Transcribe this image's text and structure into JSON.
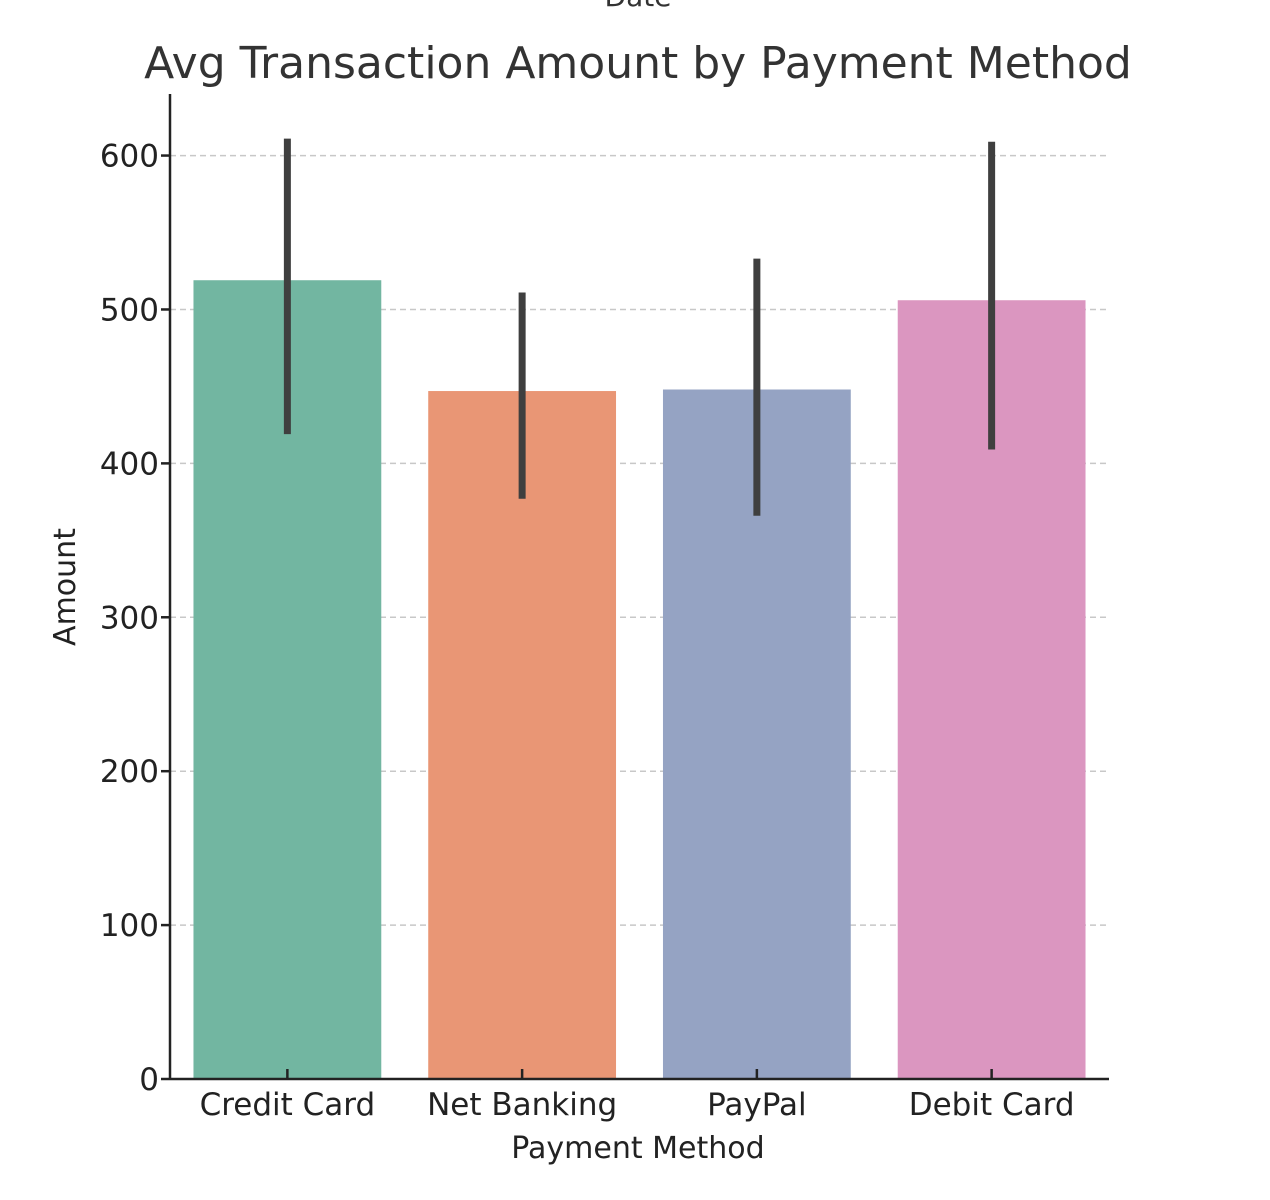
{
  "chart_data": {
    "type": "bar",
    "top_cut_text": "Date",
    "title": "Avg Transaction Amount by Payment Method",
    "xlabel": "Payment Method",
    "ylabel": "Amount",
    "categories": [
      "Credit Card",
      "Net Banking",
      "PayPal",
      "Debit Card"
    ],
    "values": [
      519,
      447,
      448,
      506
    ],
    "error_bars": [
      {
        "low": 419,
        "high": 611
      },
      {
        "low": 377,
        "high": 511
      },
      {
        "low": 366,
        "high": 533
      },
      {
        "low": 409,
        "high": 609
      }
    ],
    "colors": [
      "#72b6a1",
      "#e99675",
      "#95a3c3",
      "#db96c0"
    ],
    "error_bar_color": "#3f3f3f",
    "ylim": [
      0,
      640
    ],
    "yticks": [
      0,
      100,
      200,
      300,
      400,
      500,
      600
    ],
    "ytick_labels": [
      "0",
      "100",
      "200",
      "300",
      "400",
      "500",
      "600"
    ],
    "grid": "horizontal dashed",
    "legend": "none"
  }
}
